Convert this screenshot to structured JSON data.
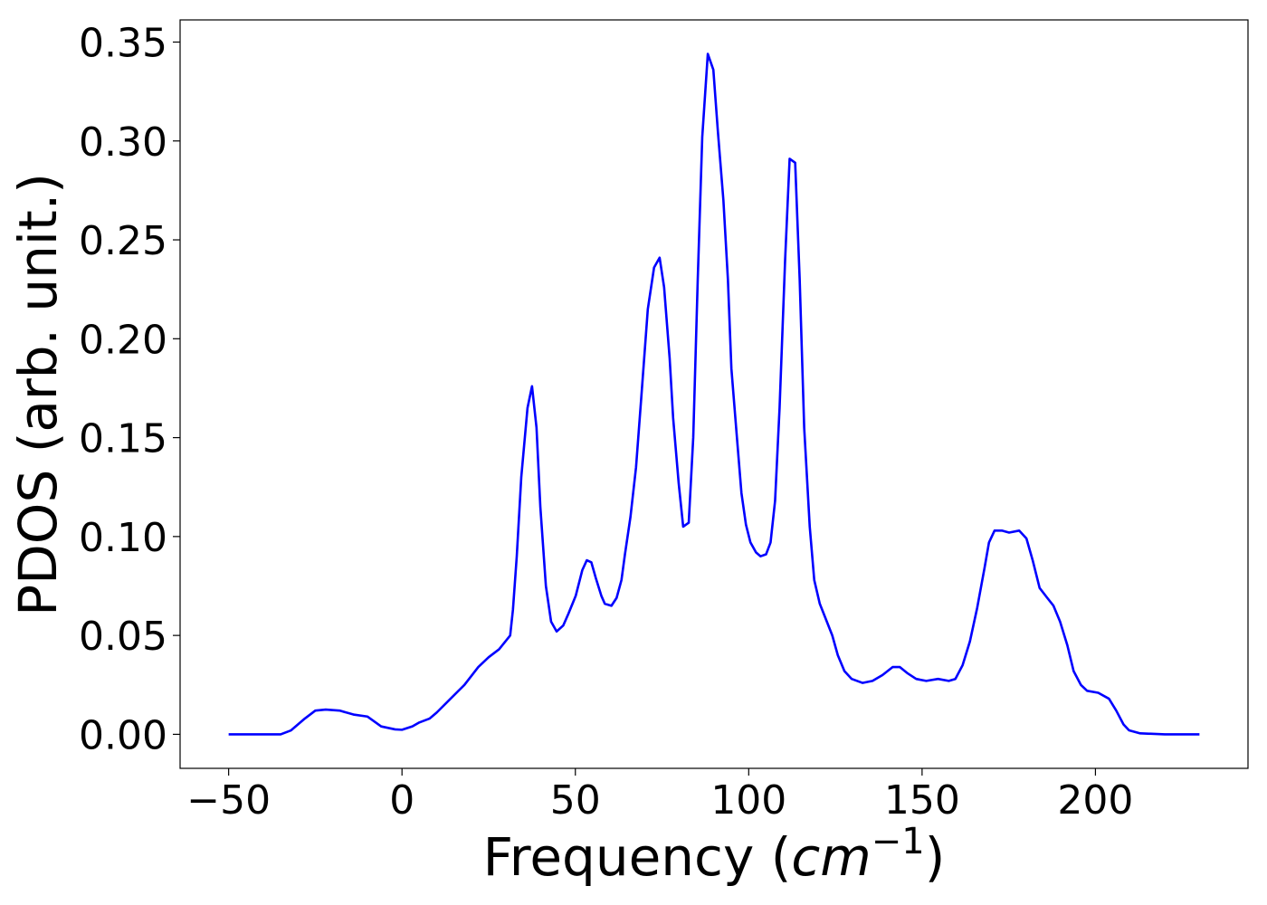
{
  "chart_data": {
    "type": "line",
    "xlabel": [
      "Frequency (",
      "cm",
      "−1",
      ")"
    ],
    "ylabel": "PDOS (arb. unit.)",
    "color": "#0000ff",
    "x": [
      -50,
      -35,
      -32,
      -28,
      -25,
      -22,
      -18,
      -14,
      -10,
      -6,
      -2,
      0,
      3,
      5,
      8,
      10,
      14,
      18,
      22,
      25,
      28,
      31.2,
      32,
      33.1,
      34.4,
      36.2,
      37.5,
      38.8,
      39.9,
      41.5,
      43,
      44.6,
      46.5,
      48,
      50.1,
      52,
      53.3,
      54.6,
      55.9,
      57.5,
      58.5,
      60.4,
      61.9,
      63.3,
      64.3,
      65.9,
      67.5,
      69,
      70.9,
      72.7,
      74.3,
      75.6,
      77.2,
      78.2,
      79.8,
      81.1,
      82.7,
      84,
      85.3,
      86.6,
      88.2,
      89.8,
      91.1,
      92.7,
      94,
      95,
      96.6,
      97.9,
      99.2,
      100.5,
      102.1,
      103.4,
      105,
      106.3,
      107.6,
      108.9,
      110.5,
      111.8,
      113.4,
      114.7,
      116,
      117.6,
      118.9,
      120.5,
      122.3,
      124.1,
      125.7,
      127.6,
      129.7,
      132.8,
      135.7,
      138.6,
      141.5,
      143.6,
      145.7,
      148.3,
      151.2,
      154.6,
      157.7,
      159.6,
      161.7,
      163.8,
      165.9,
      168,
      169.3,
      170.9,
      173,
      175.1,
      178,
      180.1,
      181.9,
      183.9,
      186.1,
      187.9,
      189.8,
      191.9,
      193.7,
      195.8,
      197.6,
      200.8,
      203.9,
      206,
      208.1,
      209.7,
      212.9,
      220,
      230
    ],
    "values": [
      0,
      0,
      0.002,
      0.008,
      0.012,
      0.0125,
      0.012,
      0.01,
      0.009,
      0.004,
      0.0025,
      0.0023,
      0.004,
      0.006,
      0.008,
      0.011,
      0.018,
      0.025,
      0.034,
      0.039,
      0.043,
      0.05,
      0.063,
      0.09,
      0.13,
      0.165,
      0.176,
      0.155,
      0.115,
      0.075,
      0.057,
      0.052,
      0.055,
      0.061,
      0.07,
      0.083,
      0.088,
      0.087,
      0.079,
      0.07,
      0.066,
      0.065,
      0.069,
      0.078,
      0.091,
      0.11,
      0.135,
      0.17,
      0.215,
      0.236,
      0.241,
      0.226,
      0.19,
      0.16,
      0.127,
      0.105,
      0.107,
      0.15,
      0.23,
      0.302,
      0.344,
      0.336,
      0.305,
      0.27,
      0.23,
      0.185,
      0.15,
      0.122,
      0.106,
      0.097,
      0.092,
      0.09,
      0.091,
      0.097,
      0.118,
      0.165,
      0.24,
      0.291,
      0.289,
      0.23,
      0.155,
      0.105,
      0.078,
      0.066,
      0.058,
      0.05,
      0.04,
      0.032,
      0.028,
      0.026,
      0.027,
      0.03,
      0.034,
      0.034,
      0.031,
      0.028,
      0.027,
      0.028,
      0.027,
      0.028,
      0.035,
      0.047,
      0.064,
      0.084,
      0.097,
      0.103,
      0.103,
      0.102,
      0.103,
      0.099,
      0.088,
      0.074,
      0.069,
      0.065,
      0.057,
      0.045,
      0.032,
      0.025,
      0.022,
      0.021,
      0.018,
      0.012,
      0.005,
      0.002,
      0.0005,
      0,
      0
    ],
    "xlim": [
      -64,
      244
    ],
    "ylim": [
      -0.0172,
      0.3612
    ],
    "xticks": [
      {
        "value": -50,
        "label": "−50"
      },
      0,
      50,
      100,
      150,
      200
    ],
    "yticks": [
      {
        "value": 0,
        "label": "0.00"
      },
      {
        "value": 0.05,
        "label": "0.05"
      },
      {
        "value": 0.1,
        "label": "0.10"
      },
      {
        "value": 0.15,
        "label": "0.15"
      },
      {
        "value": 0.2,
        "label": "0.20"
      },
      {
        "value": 0.25,
        "label": "0.25"
      },
      {
        "value": 0.3,
        "label": "0.30"
      },
      {
        "value": 0.35,
        "label": "0.35"
      }
    ]
  }
}
